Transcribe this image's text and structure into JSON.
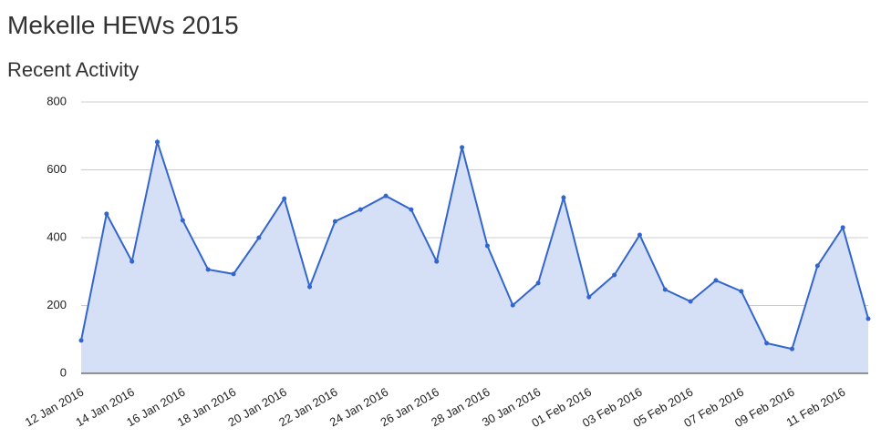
{
  "page_title": "Mekelle HEWs 2015",
  "chart_data": {
    "type": "area",
    "title": "Recent Activity",
    "categories": [
      "12 Jan 2016",
      null,
      "14 Jan 2016",
      null,
      "16 Jan 2016",
      null,
      "18 Jan 2016",
      null,
      "20 Jan 2016",
      null,
      "22 Jan 2016",
      null,
      "24 Jan 2016",
      null,
      "26 Jan 2016",
      null,
      "28 Jan 2016",
      null,
      "30 Jan 2016",
      null,
      "01 Feb 2016",
      null,
      "03 Feb 2016",
      null,
      "05 Feb 2016",
      null,
      "07 Feb 2016",
      null,
      "09 Feb 2016",
      null,
      "11 Feb 2016",
      null
    ],
    "values": [
      97,
      470,
      330,
      682,
      451,
      306,
      293,
      400,
      515,
      255,
      448,
      483,
      523,
      483,
      330,
      666,
      376,
      201,
      266,
      518,
      225,
      290,
      408,
      247,
      212,
      274,
      242,
      89,
      72,
      317,
      430,
      161
    ],
    "color": "#3366cc",
    "fill": "#d5dff5",
    "ylim": [
      0,
      800
    ],
    "yticks": [
      0,
      200,
      400,
      600,
      800
    ],
    "grid": true
  }
}
